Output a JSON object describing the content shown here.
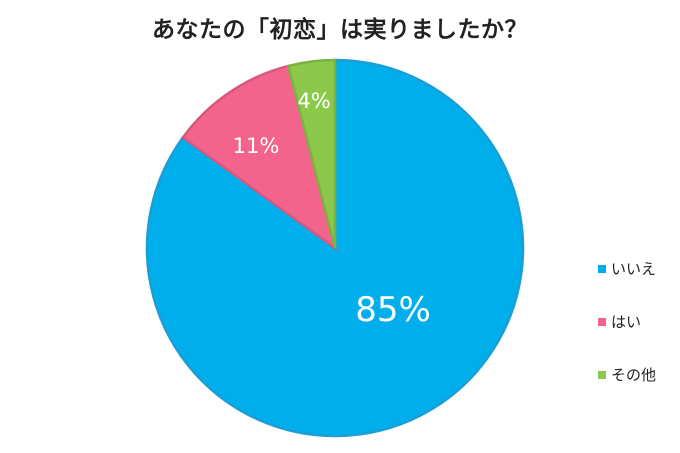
{
  "chart_data": {
    "type": "pie",
    "title": "あなたの「初恋」は実りましたか？",
    "slices": [
      {
        "label": "いいえ",
        "value": 85,
        "display": "85%",
        "color": "#00AEEB"
      },
      {
        "label": "はい",
        "value": 11,
        "display": "11%",
        "color": "#F2648C"
      },
      {
        "label": "その他",
        "value": 4,
        "display": "4%",
        "color": "#8CC84B"
      }
    ],
    "start_angle": "top, clockwise",
    "legend_position": "right"
  }
}
